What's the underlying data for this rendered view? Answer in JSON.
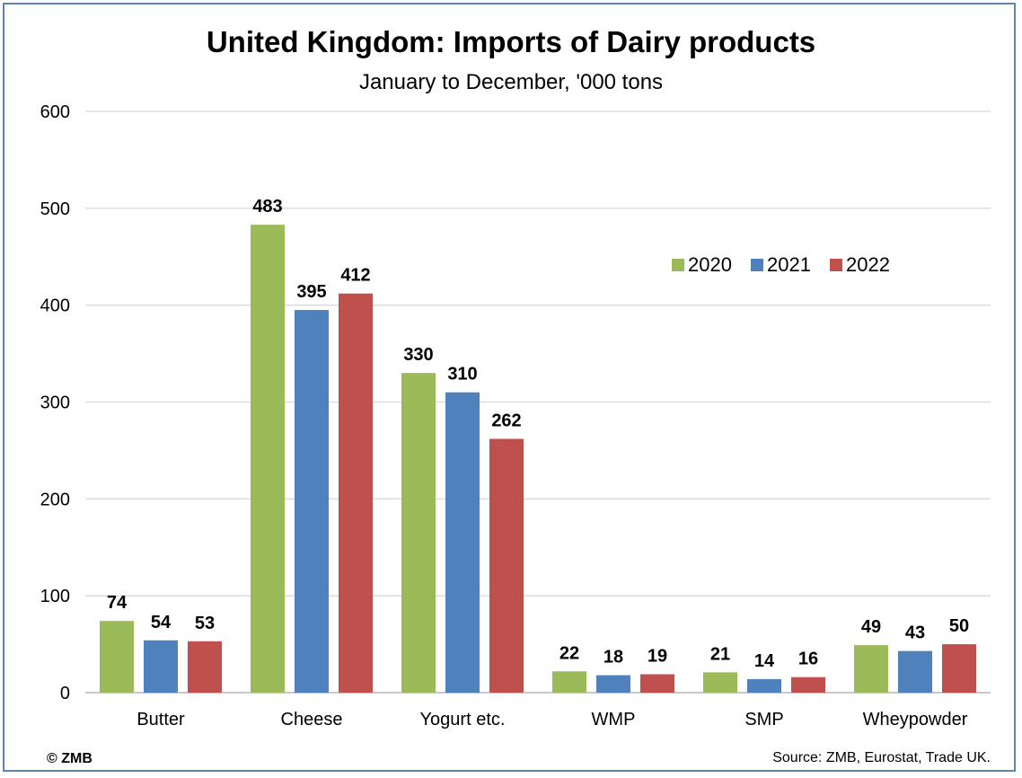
{
  "chart_data": {
    "type": "bar",
    "title": "United Kingdom: Imports of Dairy products",
    "subtitle": "January to December, '000 tons",
    "categories": [
      "Butter",
      "Cheese",
      "Yogurt etc.",
      "WMP",
      "SMP",
      "Wheypowder"
    ],
    "series": [
      {
        "name": "2020",
        "color": "#9bbb59",
        "values": [
          74,
          483,
          330,
          22,
          21,
          49
        ]
      },
      {
        "name": "2021",
        "color": "#4f81bd",
        "values": [
          54,
          395,
          310,
          18,
          14,
          43
        ]
      },
      {
        "name": "2022",
        "color": "#c0504d",
        "values": [
          53,
          412,
          262,
          19,
          16,
          50
        ]
      }
    ],
    "ylim": [
      0,
      600
    ],
    "yticks": [
      "0",
      "100",
      "200",
      "300",
      "400",
      "500",
      "600"
    ],
    "grid": true,
    "legend_position": "upper-right"
  },
  "footer": {
    "copyright": "© ZMB",
    "source": "Source: ZMB, Eurostat, Trade UK."
  }
}
